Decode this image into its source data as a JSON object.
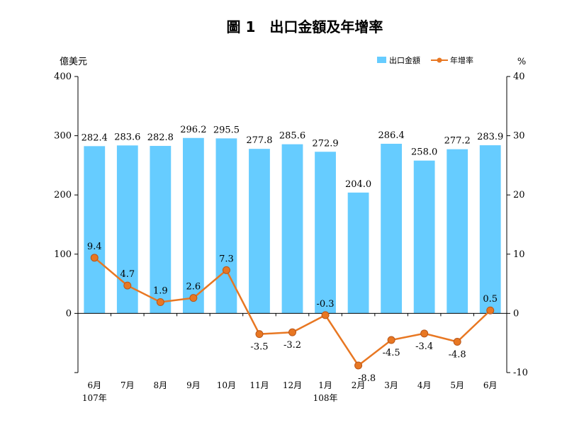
{
  "chart_data": {
    "type": "bar+line",
    "title": "圖 1　出口金額及年增率",
    "left_axis_unit": "億美元",
    "right_axis_unit": "%",
    "left_ylim": [
      -100,
      400
    ],
    "left_ticks": [
      "400",
      "300",
      "200",
      "100",
      "0"
    ],
    "right_ylim": [
      -10,
      40
    ],
    "right_ticks": [
      "40",
      "30",
      "20",
      "10",
      "0",
      "-10"
    ],
    "categories": [
      "6月",
      "7月",
      "8月",
      "9月",
      "10月",
      "11月",
      "12月",
      "1月",
      "2月",
      "3月",
      "4月",
      "5月",
      "6月"
    ],
    "year_labels": [
      {
        "index": 0,
        "text": "107年"
      },
      {
        "index": 7,
        "text": "108年"
      }
    ],
    "series": [
      {
        "name": "出口金額",
        "type": "bar",
        "axis": "left",
        "color": "#66ccff",
        "values": [
          282.4,
          283.6,
          282.8,
          296.2,
          295.5,
          277.8,
          285.6,
          272.9,
          204.0,
          286.4,
          258.0,
          277.2,
          283.9
        ],
        "labels": [
          "282.4",
          "283.6",
          "282.8",
          "296.2",
          "295.5",
          "277.8",
          "285.6",
          "272.9",
          "204.0",
          "286.4",
          "258.0",
          "277.2",
          "283.9"
        ]
      },
      {
        "name": "年增率",
        "type": "line",
        "axis": "right",
        "color": "#e87722",
        "values": [
          9.4,
          4.7,
          1.9,
          2.6,
          7.3,
          -3.5,
          -3.2,
          -0.3,
          -8.8,
          -4.5,
          -3.4,
          -4.8,
          0.5
        ],
        "labels": [
          "9.4",
          "4.7",
          "1.9",
          "2.6",
          "7.3",
          "-3.5",
          "-3.2",
          "-0.3",
          "-8.8",
          "-4.5",
          "-3.4",
          "-4.8",
          "0.5"
        ]
      }
    ],
    "legend_position": "top-right",
    "grid": false
  }
}
